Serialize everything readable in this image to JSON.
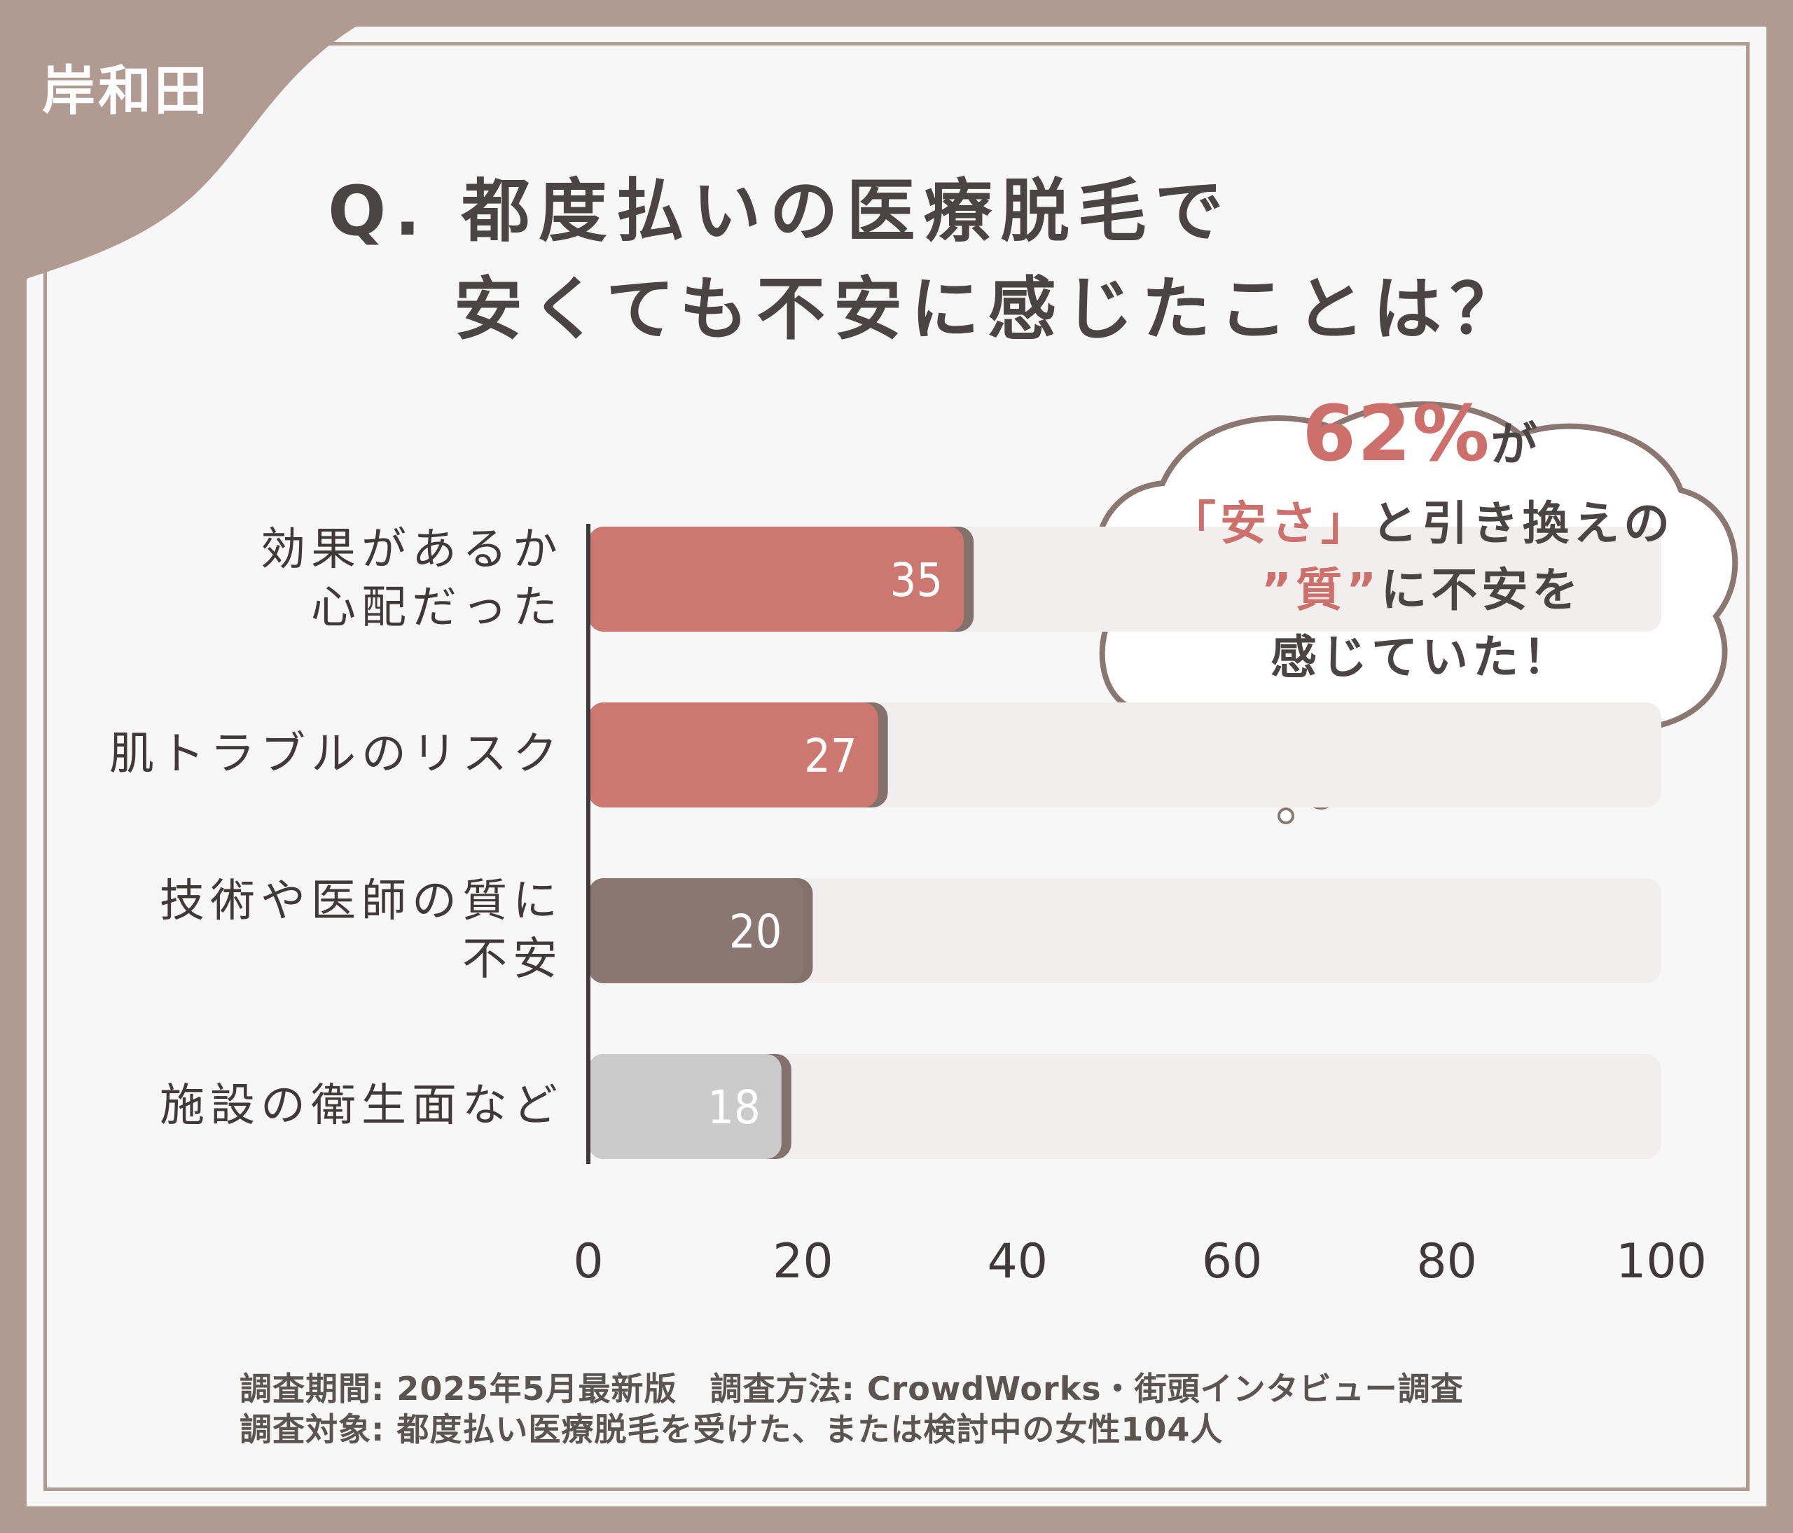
{
  "location": "岸和田",
  "title": {
    "line1": "Q. 都度払いの医療脱毛で",
    "line2": "安くても不安に感じたことは？"
  },
  "callout": {
    "percent": "62%",
    "percent_suffix": "が",
    "line2_bracket_open": "「",
    "line2_highlight": "安さ",
    "line2_bracket_close": "」",
    "line2_rest": "と引き換えの",
    "line3_highlight": "”質”",
    "line3_rest": "に不安を",
    "line4": "感じていた！"
  },
  "chart_data": {
    "type": "bar",
    "orientation": "horizontal",
    "categories": [
      "効果があるか\n心配だった",
      "肌トラブルのリスク",
      "技術や医師の質に\n不安",
      "施設の衛生面など"
    ],
    "values": [
      35,
      27,
      20,
      18
    ],
    "value_labels": [
      "35",
      "27",
      "20",
      "18"
    ],
    "xlim": [
      0,
      100
    ],
    "x_ticks": [
      "0",
      "20",
      "40",
      "60",
      "80",
      "100"
    ],
    "bar_colors": [
      "#cd7771",
      "#cd7771",
      "#8b7771",
      "#cbcbcb"
    ],
    "track_color": "#f1eeed",
    "grid": false
  },
  "notes": {
    "line1": "調査期間: 2025年5月最新版　調査方法: CrowdWorks・街頭インタビュー調査",
    "line2": "調査対象: 都度払い医療脱毛を受けた、または検討中の女性104人"
  }
}
